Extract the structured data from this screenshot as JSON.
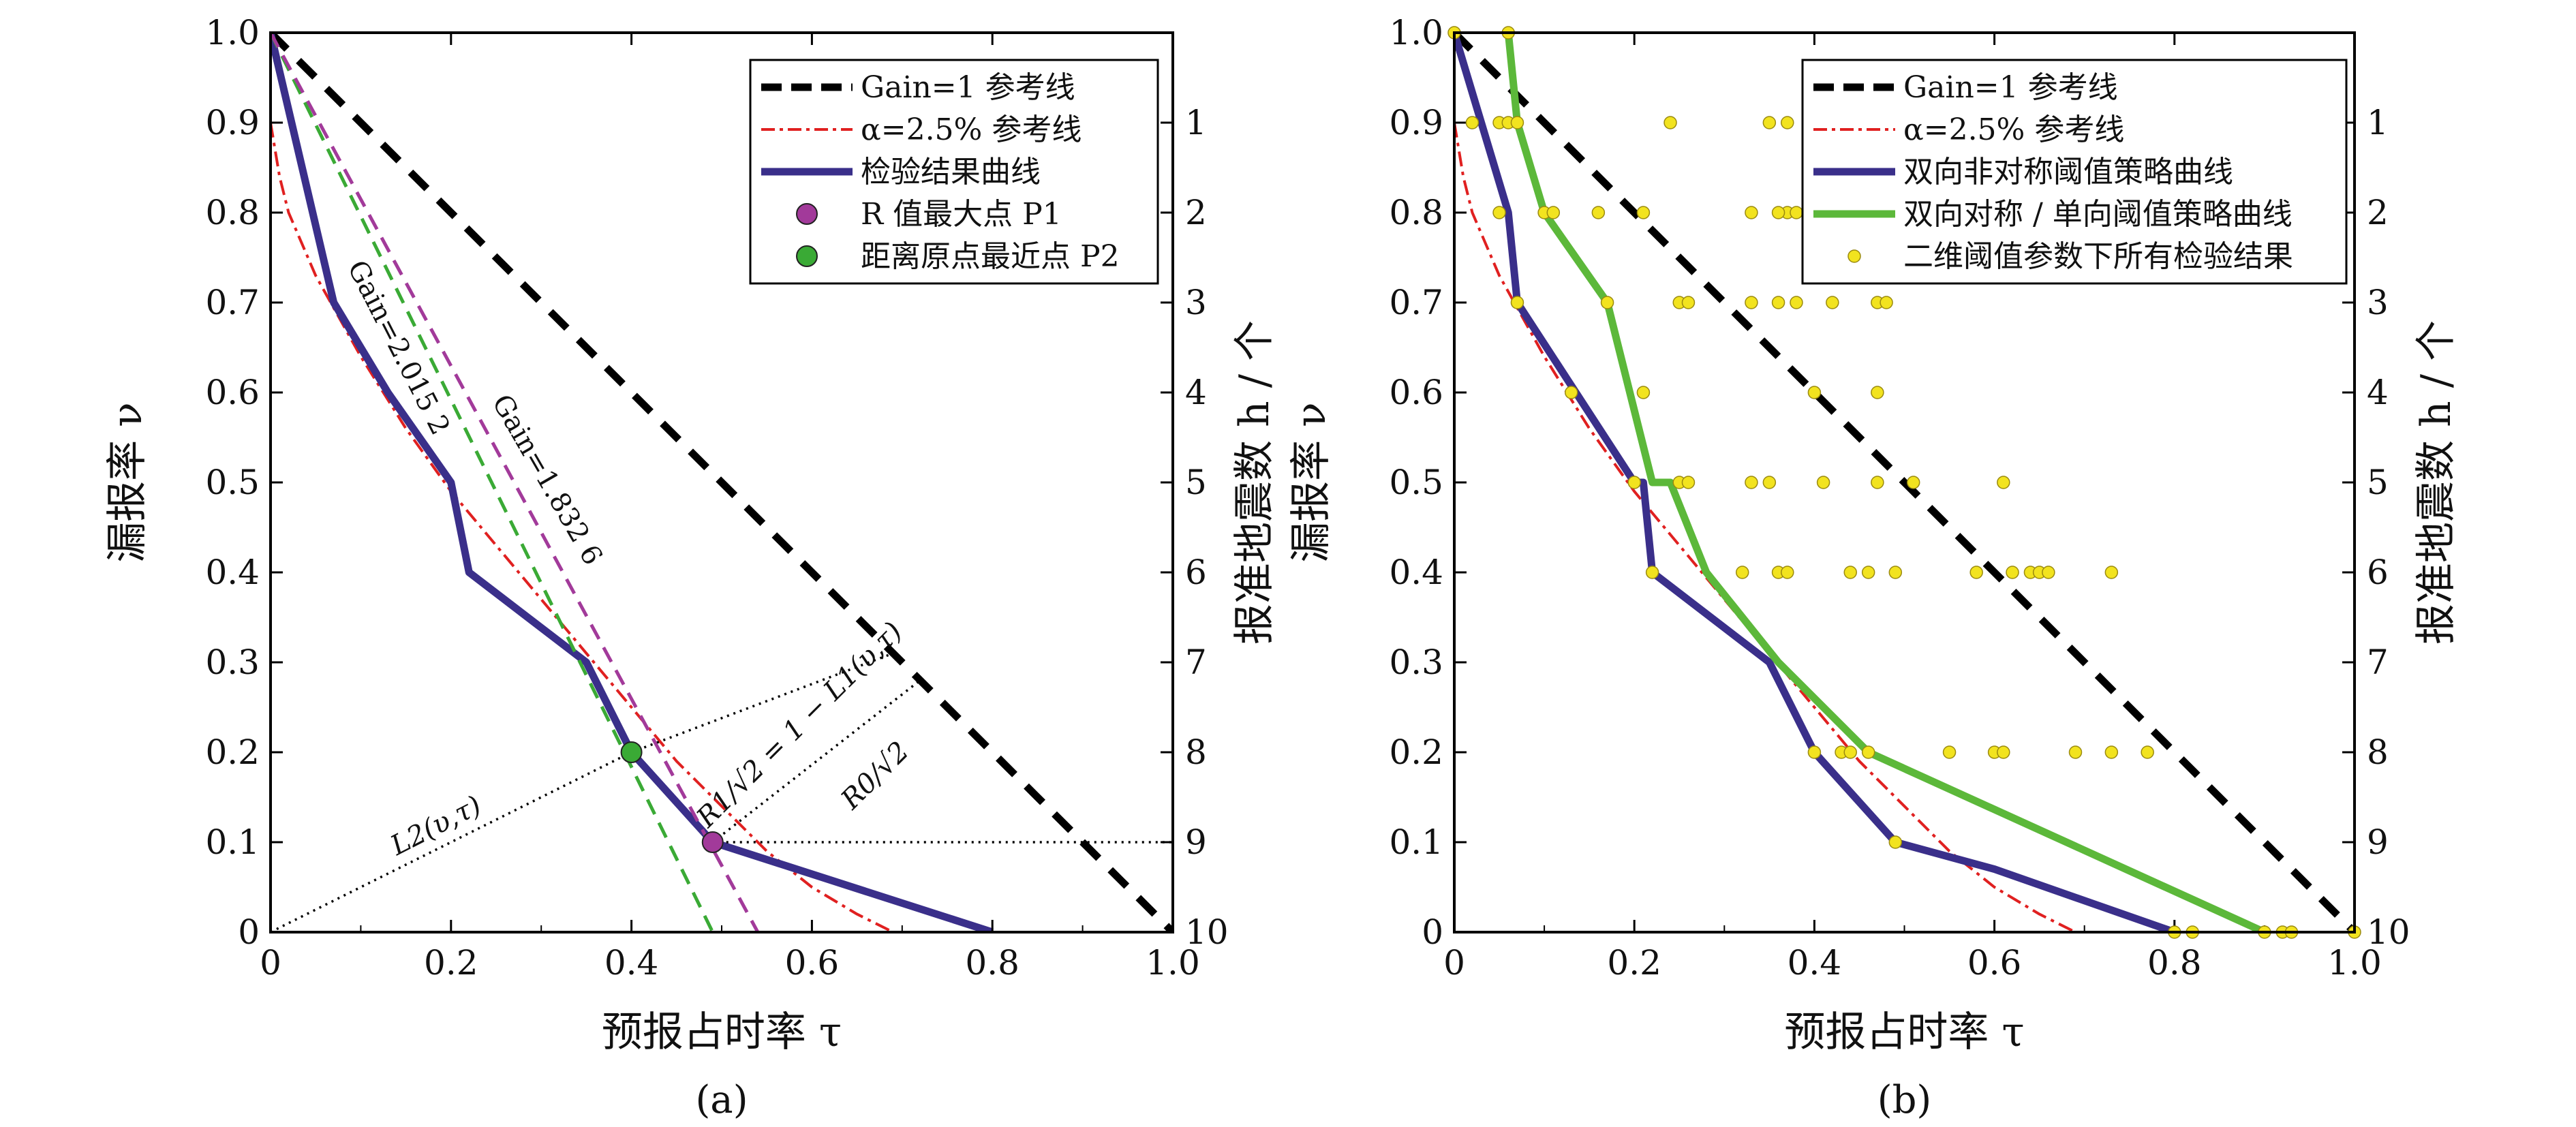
{
  "chart_data": [
    {
      "panel": "a",
      "type": "line",
      "panel_label": "(a)",
      "xlabel": "预报占时率 τ",
      "ylabel": "漏报率 ν",
      "y2label": "报准地震数 h / 个",
      "xlim": [
        0,
        1
      ],
      "ylim": [
        0,
        1
      ],
      "x_ticks": [
        "0",
        "0.2",
        "0.4",
        "0.6",
        "0.8",
        "1.0"
      ],
      "y_ticks": [
        "0",
        "0.1",
        "0.2",
        "0.3",
        "0.4",
        "0.5",
        "0.6",
        "0.7",
        "0.8",
        "0.9",
        "1.0"
      ],
      "y2_ticks": [
        "10",
        "9",
        "8",
        "7",
        "6",
        "5",
        "4",
        "3",
        "2",
        "1"
      ],
      "legend": [
        {
          "label": "Gain=1 参考线",
          "style": "dashed-black"
        },
        {
          "label": "α=2.5% 参考线",
          "style": "dashdot-red"
        },
        {
          "label": "检验结果曲线",
          "style": "solid-navy"
        },
        {
          "label": "R 值最大点 P1",
          "style": "marker-purple"
        },
        {
          "label": "距离原点最近点 P2",
          "style": "marker-green"
        }
      ],
      "series": [
        {
          "name": "Gain=1 参考线",
          "color": "#000000",
          "x": [
            0,
            1
          ],
          "y": [
            1,
            0
          ]
        },
        {
          "name": "α=2.5% 参考线",
          "color": "#e02020",
          "x": [
            0.0,
            0.01,
            0.02,
            0.05,
            0.1,
            0.15,
            0.2,
            0.25,
            0.3,
            0.35,
            0.4,
            0.45,
            0.5,
            0.55,
            0.6,
            0.65,
            0.69
          ],
          "y": [
            0.9,
            0.84,
            0.8,
            0.73,
            0.64,
            0.56,
            0.49,
            0.43,
            0.37,
            0.31,
            0.25,
            0.19,
            0.14,
            0.09,
            0.05,
            0.02,
            0.0
          ]
        },
        {
          "name": "检验结果曲线",
          "color": "#3a2f8a",
          "x": [
            0.0,
            0.07,
            0.13,
            0.2,
            0.22,
            0.35,
            0.4,
            0.49,
            0.8
          ],
          "y": [
            1.0,
            0.7,
            0.6,
            0.5,
            0.4,
            0.3,
            0.2,
            0.1,
            0.0
          ]
        },
        {
          "name": "Gain=2.015 2",
          "color": "#3aaa35",
          "x": [
            0.0,
            0.49
          ],
          "y": [
            1.0,
            0.0
          ]
        },
        {
          "name": "Gain=1.832 6",
          "color": "#a23a9a",
          "x": [
            0.0,
            0.54
          ],
          "y": [
            1.0,
            0.0
          ]
        }
      ],
      "points": [
        {
          "name": "P1",
          "x": 0.49,
          "y": 0.1,
          "color": "#a23a9a"
        },
        {
          "name": "P2",
          "x": 0.4,
          "y": 0.2,
          "color": "#3aaa35"
        }
      ],
      "annotations": [
        "Gain=2.015 2",
        "Gain=1.832 6",
        "L2(υ,τ)",
        "R1/√2 = 1 − L1(υ,τ)",
        "R0/√2"
      ]
    },
    {
      "panel": "b",
      "type": "line",
      "panel_label": "(b)",
      "xlabel": "预报占时率 τ",
      "ylabel": "漏报率 ν",
      "y2label": "报准地震数 h / 个",
      "xlim": [
        0,
        1
      ],
      "ylim": [
        0,
        1
      ],
      "x_ticks": [
        "0",
        "0.2",
        "0.4",
        "0.6",
        "0.8",
        "1.0"
      ],
      "y_ticks": [
        "0",
        "0.1",
        "0.2",
        "0.3",
        "0.4",
        "0.5",
        "0.6",
        "0.7",
        "0.8",
        "0.9",
        "1.0"
      ],
      "y2_ticks": [
        "10",
        "9",
        "8",
        "7",
        "6",
        "5",
        "4",
        "3",
        "2",
        "1"
      ],
      "legend": [
        {
          "label": "Gain=1 参考线",
          "style": "dashed-black"
        },
        {
          "label": "α=2.5% 参考线",
          "style": "dashdot-red"
        },
        {
          "label": "双向非对称阈值策略曲线",
          "style": "solid-navy"
        },
        {
          "label": "双向对称 / 单向阈值策略曲线",
          "style": "solid-green"
        },
        {
          "label": "二维阈值参数下所有检验结果",
          "style": "marker-yellow"
        }
      ],
      "series": [
        {
          "name": "Gain=1 参考线",
          "color": "#000000",
          "x": [
            0,
            1
          ],
          "y": [
            1,
            0
          ]
        },
        {
          "name": "α=2.5% 参考线",
          "color": "#e02020",
          "x": [
            0.0,
            0.01,
            0.02,
            0.05,
            0.1,
            0.15,
            0.2,
            0.25,
            0.3,
            0.35,
            0.4,
            0.45,
            0.5,
            0.55,
            0.6,
            0.65,
            0.69
          ],
          "y": [
            0.9,
            0.84,
            0.8,
            0.73,
            0.64,
            0.56,
            0.49,
            0.43,
            0.37,
            0.31,
            0.25,
            0.19,
            0.14,
            0.09,
            0.05,
            0.02,
            0.0
          ]
        },
        {
          "name": "双向非对称阈值策略曲线",
          "color": "#3a2f8a",
          "x": [
            0.0,
            0.03,
            0.06,
            0.07,
            0.2,
            0.21,
            0.22,
            0.35,
            0.4,
            0.49,
            0.6,
            0.8
          ],
          "y": [
            1.0,
            0.9,
            0.8,
            0.7,
            0.5,
            0.5,
            0.4,
            0.3,
            0.2,
            0.1,
            0.07,
            0.0
          ]
        },
        {
          "name": "双向对称 / 单向阈值策略曲线",
          "color": "#5cb83a",
          "x": [
            0.06,
            0.07,
            0.1,
            0.17,
            0.22,
            0.24,
            0.28,
            0.36,
            0.46,
            0.9
          ],
          "y": [
            1.0,
            0.9,
            0.8,
            0.7,
            0.5,
            0.5,
            0.4,
            0.3,
            0.2,
            0.0
          ]
        },
        {
          "name": "二维阈值参数下所有检验结果",
          "type": "scatter",
          "color": "#f2e31f",
          "x": [
            0.0,
            0.06,
            0.02,
            0.05,
            0.06,
            0.07,
            0.24,
            0.35,
            0.37,
            0.05,
            0.1,
            0.11,
            0.16,
            0.21,
            0.33,
            0.37,
            0.38,
            0.36,
            0.07,
            0.17,
            0.25,
            0.26,
            0.33,
            0.36,
            0.38,
            0.42,
            0.47,
            0.48,
            0.13,
            0.21,
            0.4,
            0.47,
            0.2,
            0.25,
            0.26,
            0.33,
            0.35,
            0.41,
            0.47,
            0.51,
            0.61,
            0.22,
            0.32,
            0.36,
            0.37,
            0.44,
            0.46,
            0.49,
            0.58,
            0.62,
            0.64,
            0.65,
            0.66,
            0.73,
            0.4,
            0.43,
            0.44,
            0.46,
            0.55,
            0.6,
            0.61,
            0.69,
            0.73,
            0.77,
            0.49,
            0.8,
            0.82,
            0.9,
            0.92,
            0.93,
            1.0
          ],
          "y": [
            1.0,
            1.0,
            0.9,
            0.9,
            0.9,
            0.9,
            0.9,
            0.9,
            0.9,
            0.8,
            0.8,
            0.8,
            0.8,
            0.8,
            0.8,
            0.8,
            0.8,
            0.8,
            0.7,
            0.7,
            0.7,
            0.7,
            0.7,
            0.7,
            0.7,
            0.7,
            0.7,
            0.7,
            0.6,
            0.6,
            0.6,
            0.6,
            0.5,
            0.5,
            0.5,
            0.5,
            0.5,
            0.5,
            0.5,
            0.5,
            0.5,
            0.4,
            0.4,
            0.4,
            0.4,
            0.4,
            0.4,
            0.4,
            0.4,
            0.4,
            0.4,
            0.4,
            0.4,
            0.4,
            0.2,
            0.2,
            0.2,
            0.2,
            0.2,
            0.2,
            0.2,
            0.2,
            0.2,
            0.2,
            0.1,
            0.0,
            0.0,
            0.0,
            0.0,
            0.0,
            0.0
          ]
        }
      ]
    }
  ]
}
